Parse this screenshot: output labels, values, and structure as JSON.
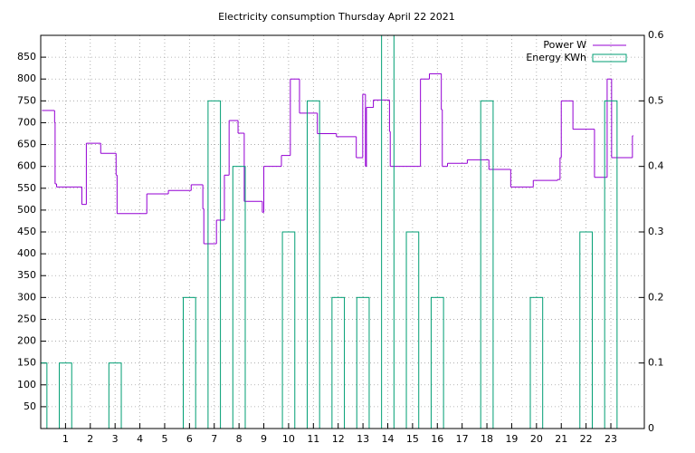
{
  "chart_data": {
    "type": "step-bar",
    "title": "Electricity consumption Thursday April 22 2021",
    "xlim": [
      0,
      24.35
    ],
    "xticks": [
      1,
      2,
      3,
      4,
      5,
      6,
      7,
      8,
      9,
      10,
      11,
      12,
      13,
      14,
      15,
      16,
      17,
      18,
      19,
      20,
      21,
      22,
      23
    ],
    "ylim": [
      0,
      900
    ],
    "yticks": [
      50,
      100,
      150,
      200,
      250,
      300,
      350,
      400,
      450,
      500,
      550,
      600,
      650,
      700,
      750,
      800,
      850
    ],
    "y2lim": [
      0,
      0.6
    ],
    "y2ticks": [
      0,
      0.1,
      0.2,
      0.3,
      0.4,
      0.5,
      0.6
    ],
    "grid": true,
    "legend": "top-right",
    "series": [
      {
        "name": "Power W",
        "color": "#9400d3",
        "style": "steps",
        "x": [
          0.05,
          0.56,
          0.58,
          0.64,
          1.66,
          1.84,
          2.42,
          3.04,
          3.08,
          4.28,
          5.15,
          6.07,
          6.54,
          6.58,
          7.09,
          7.41,
          7.6,
          7.96,
          8.21,
          8.94,
          9.0,
          9.71,
          10.07,
          10.44,
          11.16,
          11.93,
          12.73,
          12.99,
          13.1,
          13.14,
          13.42,
          14.07,
          14.1,
          15.32,
          15.68,
          16.16,
          16.2,
          16.41,
          17.21,
          18.08,
          18.96,
          19.87,
          20.85,
          20.95,
          21.0,
          21.47,
          22.34,
          22.85,
          23.03,
          23.87
        ],
        "values": [
          728,
          700,
          560,
          553,
          513,
          653,
          630,
          580,
          492,
          537,
          545,
          558,
          503,
          423,
          477,
          580,
          705,
          676,
          520,
          495,
          600,
          625,
          800,
          722,
          675,
          668,
          620,
          765,
          600,
          735,
          752,
          680,
          600,
          800,
          812,
          730,
          600,
          607,
          615,
          593,
          553,
          568,
          570,
          620,
          750,
          685,
          575,
          800,
          620,
          670
        ]
      },
      {
        "name": "Energy KWh",
        "color": "#009e73",
        "style": "histeps",
        "axis": "y2",
        "x": [
          0,
          1,
          2,
          3,
          4,
          5,
          6,
          7,
          8,
          9,
          10,
          11,
          12,
          13,
          14,
          15,
          16,
          17,
          18,
          19,
          20,
          21,
          22,
          23
        ],
        "values": [
          0.1,
          0.1,
          0,
          0.1,
          0,
          0,
          0.2,
          0.5,
          0.4,
          0,
          0.3,
          0.5,
          0.2,
          0.2,
          0.6,
          0.3,
          0.2,
          0,
          0.5,
          0,
          0.2,
          0,
          0.3,
          0.5
        ]
      }
    ]
  }
}
